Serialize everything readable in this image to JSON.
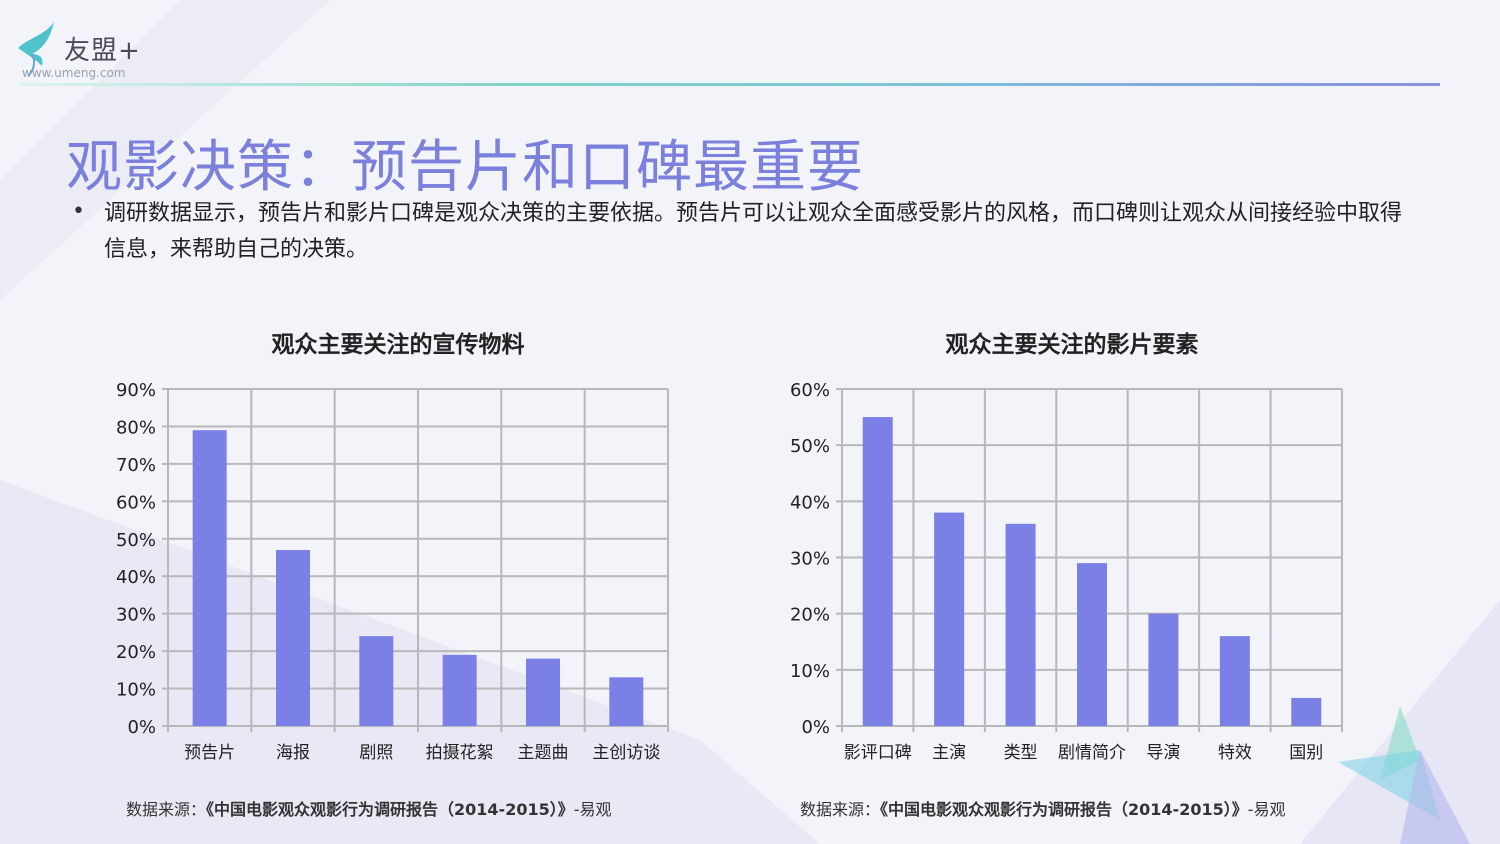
{
  "brand": {
    "name": "友盟+",
    "url": "www.umeng.com"
  },
  "slide_title": "观影决策：预告片和口碑最重要",
  "bullet": "调研数据显示，预告片和影片口碑是观众决策的主要依据。预告片可以让观众全面感受影片的风格，而口碑则让观众从间接经验中取得信息，来帮助自己的决策。",
  "colors": {
    "bar": "#7b80e6",
    "title": "#7b80dc",
    "grid": "#b8b8b8"
  },
  "sources": {
    "left": {
      "prefix": "数据来源：",
      "report": "《中国电影观众观影行为调研报告（2014-2015）》",
      "suffix": "-易观"
    },
    "right": {
      "prefix": "数据来源：",
      "report": "《中国电影观众观影行为调研报告（2014-2015）》",
      "suffix": "-易观"
    }
  },
  "chart_data": [
    {
      "type": "bar",
      "title": "观众主要关注的宣传物料",
      "categories": [
        "预告片",
        "海报",
        "剧照",
        "拍摄花絮",
        "主题曲",
        "主创访谈"
      ],
      "values": [
        79,
        47,
        24,
        19,
        18,
        13
      ],
      "ylim": [
        0,
        90
      ],
      "yticks": [
        0,
        10,
        20,
        30,
        40,
        50,
        60,
        70,
        80,
        90
      ],
      "ytick_suffix": "%",
      "grid": true,
      "xlabel": "",
      "ylabel": ""
    },
    {
      "type": "bar",
      "title": "观众主要关注的影片要素",
      "categories": [
        "影评口碑",
        "主演",
        "类型",
        "剧情简介",
        "导演",
        "特效",
        "国别"
      ],
      "values": [
        55,
        38,
        36,
        29,
        20,
        16,
        5
      ],
      "ylim": [
        0,
        60
      ],
      "yticks": [
        0,
        10,
        20,
        30,
        40,
        50,
        60
      ],
      "ytick_suffix": "%",
      "grid": true,
      "xlabel": "",
      "ylabel": ""
    }
  ]
}
